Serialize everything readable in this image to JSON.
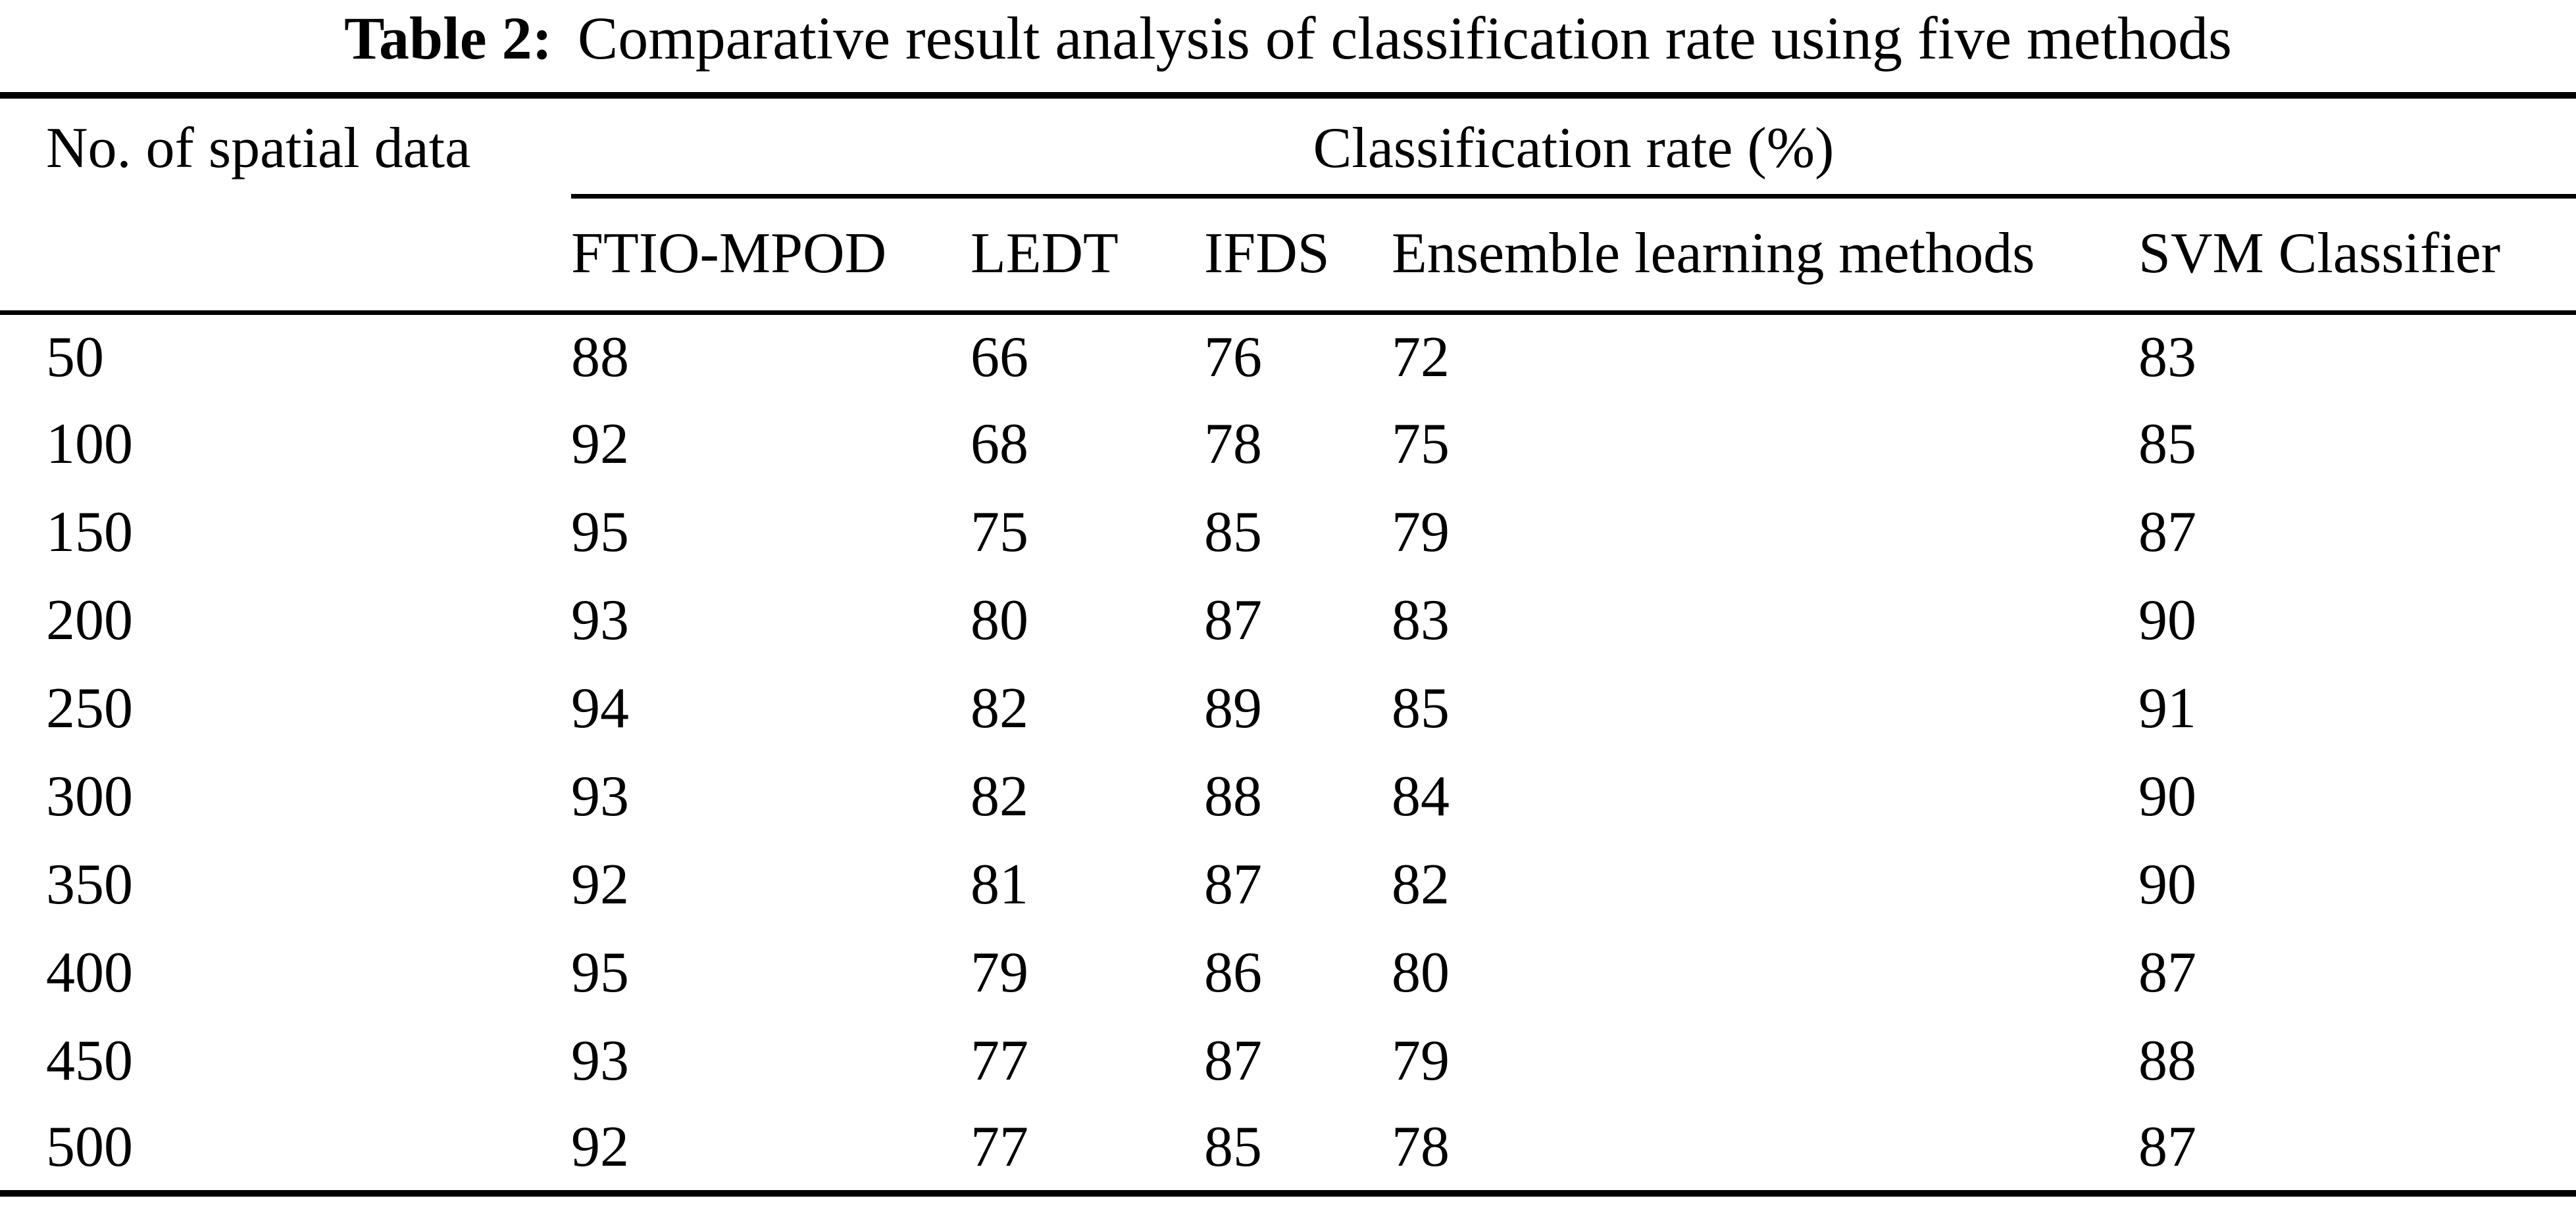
{
  "title": {
    "label": "Table 2:",
    "text": "Comparative result analysis of classification rate using five methods"
  },
  "table": {
    "row_header": "No. of spatial data",
    "group_header": "Classification rate (%)",
    "columns": [
      "FTIO-MPOD",
      "LEDT",
      "IFDS",
      "Ensemble learning methods",
      "SVM Classifier"
    ],
    "rows": [
      [
        "50",
        "88",
        "66",
        "76",
        "72",
        "83"
      ],
      [
        "100",
        "92",
        "68",
        "78",
        "75",
        "85"
      ],
      [
        "150",
        "95",
        "75",
        "85",
        "79",
        "87"
      ],
      [
        "200",
        "93",
        "80",
        "87",
        "83",
        "90"
      ],
      [
        "250",
        "94",
        "82",
        "89",
        "85",
        "91"
      ],
      [
        "300",
        "93",
        "82",
        "88",
        "84",
        "90"
      ],
      [
        "350",
        "92",
        "81",
        "87",
        "82",
        "90"
      ],
      [
        "400",
        "95",
        "79",
        "86",
        "80",
        "87"
      ],
      [
        "450",
        "93",
        "77",
        "87",
        "79",
        "88"
      ],
      [
        "500",
        "92",
        "77",
        "85",
        "78",
        "87"
      ]
    ]
  },
  "chart_data": {
    "type": "table",
    "title": "Table 2: Comparative result analysis of classification rate using five methods",
    "categories": [
      50,
      100,
      150,
      200,
      250,
      300,
      350,
      400,
      450,
      500
    ],
    "xlabel": "No. of spatial data",
    "ylabel": "Classification rate (%)",
    "series": [
      {
        "name": "FTIO-MPOD",
        "values": [
          88,
          92,
          95,
          93,
          94,
          93,
          92,
          95,
          93,
          92
        ]
      },
      {
        "name": "LEDT",
        "values": [
          66,
          68,
          75,
          80,
          82,
          82,
          81,
          79,
          77,
          77
        ]
      },
      {
        "name": "IFDS",
        "values": [
          76,
          78,
          85,
          87,
          89,
          88,
          87,
          86,
          87,
          85
        ]
      },
      {
        "name": "Ensemble learning methods",
        "values": [
          72,
          75,
          79,
          83,
          85,
          84,
          82,
          80,
          79,
          78
        ]
      },
      {
        "name": "SVM Classifier",
        "values": [
          83,
          85,
          87,
          90,
          91,
          90,
          90,
          87,
          88,
          87
        ]
      }
    ]
  }
}
